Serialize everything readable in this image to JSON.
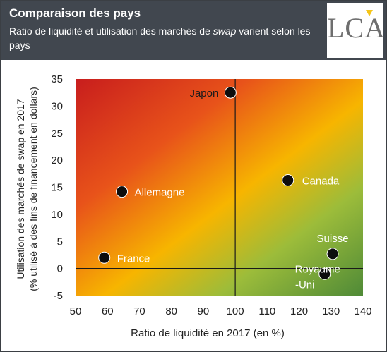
{
  "header": {
    "title": "Comparaison des pays",
    "subtitle_pre": "Ratio de liquidité et utilisation des marchés de ",
    "subtitle_em": "swap",
    "subtitle_post": " varient selon les pays"
  },
  "logo": {
    "text": "LCA",
    "accent_color": "#f5c518"
  },
  "chart_data": {
    "type": "scatter",
    "title": "",
    "xlabel": "Ratio de liquidité en 2017 (en %)",
    "ylabel_line1": "Utilisation des marchés de swap en 2017",
    "ylabel_line2": "(% utilisé à des fins de financement en dollars)",
    "xlim": [
      50,
      140
    ],
    "ylim": [
      -5,
      35
    ],
    "x_ticks": [
      50,
      60,
      70,
      80,
      90,
      100,
      110,
      120,
      130,
      140
    ],
    "y_ticks": [
      -5,
      0,
      5,
      10,
      15,
      20,
      25,
      30,
      35
    ],
    "reference_lines": {
      "x": 100,
      "y": 0
    },
    "grid": false,
    "background": "gradient red (top-left) to yellow to green (bottom-right)",
    "points": [
      {
        "label": "Japon",
        "x": 98.5,
        "y": 32.5
      },
      {
        "label": "Canada",
        "x": 116.5,
        "y": 16.3
      },
      {
        "label": "Allemagne",
        "x": 64.5,
        "y": 14.2
      },
      {
        "label": "France",
        "x": 59,
        "y": 2
      },
      {
        "label": "Suisse",
        "x": 130.5,
        "y": 2.7
      },
      {
        "label": "Royaume-Uni",
        "label_line1": "Royaume",
        "label_line2": "-Uni",
        "x": 128,
        "y": -1
      }
    ],
    "colors": {
      "point": "#0d0d0d",
      "label": "#ffffff",
      "label_dark": "#1a1a1a",
      "red": "#c81d1d",
      "yellow": "#f7b500",
      "green": "#5e9a3a"
    }
  }
}
